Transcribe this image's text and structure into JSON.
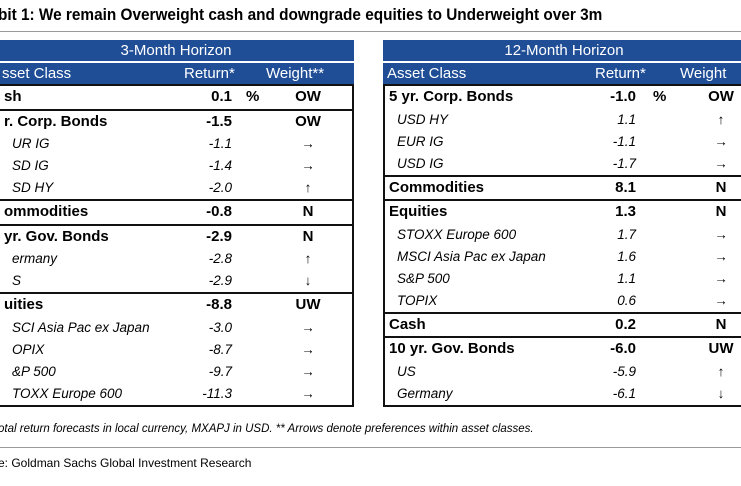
{
  "title": "bit 1: We remain Overweight cash and downgrade equities to Underweight over 3m",
  "left": {
    "horizon": "3-Month Horizon",
    "columns": {
      "asset": "sset Class",
      "return": "Return*",
      "weight": "Weight**"
    },
    "rows": [
      {
        "type": "main",
        "name": "sh",
        "ret": "0.1",
        "pct": "%",
        "w": "OW",
        "group_start": true
      },
      {
        "type": "main",
        "name": "r. Corp. Bonds",
        "ret": "-1.5",
        "w": "OW",
        "group_start": true
      },
      {
        "type": "sub",
        "name": "UR IG",
        "ret": "-1.1",
        "w": "→"
      },
      {
        "type": "sub",
        "name": "SD IG",
        "ret": "-1.4",
        "w": "→"
      },
      {
        "type": "sub",
        "name": "SD HY",
        "ret": "-2.0",
        "w": "↑"
      },
      {
        "type": "main",
        "name": "ommodities",
        "ret": "-0.8",
        "w": "N",
        "group_start": true
      },
      {
        "type": "main",
        "name": "yr. Gov. Bonds",
        "ret": "-2.9",
        "w": "N",
        "group_start": true
      },
      {
        "type": "sub",
        "name": "ermany",
        "ret": "-2.8",
        "w": "↑"
      },
      {
        "type": "sub",
        "name": "S",
        "ret": "-2.9",
        "w": "↓"
      },
      {
        "type": "main",
        "name": "uities",
        "ret": "-8.8",
        "w": "UW",
        "group_start": true
      },
      {
        "type": "sub",
        "name": "SCI Asia Pac ex Japan",
        "ret": "-3.0",
        "w": "→"
      },
      {
        "type": "sub",
        "name": "OPIX",
        "ret": "-8.7",
        "w": "→"
      },
      {
        "type": "sub",
        "name": "&P 500",
        "ret": "-9.7",
        "w": "→"
      },
      {
        "type": "sub",
        "name": "TOXX Europe 600",
        "ret": "-11.3",
        "w": "→"
      }
    ]
  },
  "right": {
    "horizon": "12-Month Horizon",
    "columns": {
      "asset": "Asset Class",
      "return": "Return*",
      "weight": "Weight"
    },
    "rows": [
      {
        "type": "main",
        "name": "5 yr. Corp. Bonds",
        "ret": "-1.0",
        "pct": "%",
        "w": "OW",
        "group_start": true
      },
      {
        "type": "sub",
        "name": "USD HY",
        "ret": "1.1",
        "w": "↑"
      },
      {
        "type": "sub",
        "name": "EUR IG",
        "ret": "-1.1",
        "w": "→"
      },
      {
        "type": "sub",
        "name": "USD IG",
        "ret": "-1.7",
        "w": "→"
      },
      {
        "type": "main",
        "name": "Commodities",
        "ret": "8.1",
        "w": "N",
        "group_start": true
      },
      {
        "type": "main",
        "name": "Equities",
        "ret": "1.3",
        "w": "N",
        "group_start": true
      },
      {
        "type": "sub",
        "name": "STOXX Europe 600",
        "ret": "1.7",
        "w": "→"
      },
      {
        "type": "sub",
        "name": "MSCI Asia Pac ex Japan",
        "ret": "1.6",
        "w": "→"
      },
      {
        "type": "sub",
        "name": "S&P 500",
        "ret": "1.1",
        "w": "→"
      },
      {
        "type": "sub",
        "name": "TOPIX",
        "ret": "0.6",
        "w": "→"
      },
      {
        "type": "main",
        "name": "Cash",
        "ret": "0.2",
        "w": "N",
        "group_start": true
      },
      {
        "type": "main",
        "name": "10 yr. Gov. Bonds",
        "ret": "-6.0",
        "w": "UW",
        "group_start": true
      },
      {
        "type": "sub",
        "name": "US",
        "ret": "-5.9",
        "w": "↑"
      },
      {
        "type": "sub",
        "name": "Germany",
        "ret": "-6.1",
        "w": "↓"
      }
    ]
  },
  "footnote": "otal return forecasts in local currency, MXAPJ in USD. ** Arrows denote preferences within asset classes.",
  "source": "e: Goldman Sachs Global Investment Research"
}
